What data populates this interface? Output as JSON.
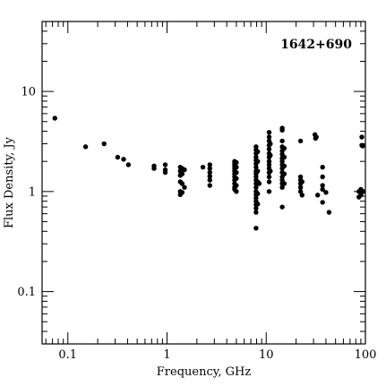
{
  "chart_data": {
    "type": "scatter",
    "title": "",
    "annotation": "1642+690",
    "xlabel": "Frequency, GHz",
    "ylabel": "Flux Density, Jy",
    "xscale": "log",
    "yscale": "log",
    "xlim": [
      0.055,
      100
    ],
    "ylim": [
      0.03,
      50
    ],
    "grid": false,
    "legend": "none",
    "marker_color": "#000000",
    "x_ticklabels": [
      {
        "value": 0.1,
        "label": "0.1"
      },
      {
        "value": 1,
        "label": "1"
      },
      {
        "value": 10,
        "label": "10"
      },
      {
        "value": 100,
        "label": "100"
      }
    ],
    "y_ticklabels": [
      {
        "value": 0.1,
        "label": "0.1"
      },
      {
        "value": 1,
        "label": "1"
      },
      {
        "value": 10,
        "label": "10"
      }
    ],
    "points": [
      [
        0.074,
        5.4
      ],
      [
        0.151,
        2.8
      ],
      [
        0.232,
        3.0
      ],
      [
        0.318,
        2.2
      ],
      [
        0.365,
        2.1
      ],
      [
        0.408,
        1.85
      ],
      [
        0.74,
        1.8
      ],
      [
        0.74,
        1.7
      ],
      [
        0.96,
        1.85
      ],
      [
        0.96,
        1.65
      ],
      [
        0.96,
        1.55
      ],
      [
        1.36,
        1.75
      ],
      [
        1.36,
        1.6
      ],
      [
        1.36,
        1.45
      ],
      [
        1.36,
        1.25
      ],
      [
        1.36,
        1.0
      ],
      [
        1.36,
        0.93
      ],
      [
        1.42,
        1.7
      ],
      [
        1.42,
        1.5
      ],
      [
        1.42,
        1.2
      ],
      [
        1.42,
        0.98
      ],
      [
        1.5,
        1.65
      ],
      [
        1.5,
        1.1
      ],
      [
        2.3,
        1.75
      ],
      [
        2.7,
        1.85
      ],
      [
        2.7,
        1.7
      ],
      [
        2.7,
        1.55
      ],
      [
        2.7,
        1.42
      ],
      [
        2.7,
        1.3
      ],
      [
        2.7,
        1.15
      ],
      [
        4.8,
        2.0
      ],
      [
        4.8,
        1.9
      ],
      [
        4.8,
        1.8
      ],
      [
        4.8,
        1.7
      ],
      [
        4.8,
        1.6
      ],
      [
        4.8,
        1.5
      ],
      [
        4.8,
        1.4
      ],
      [
        4.8,
        1.3
      ],
      [
        4.8,
        1.2
      ],
      [
        4.8,
        1.1
      ],
      [
        4.8,
        1.05
      ],
      [
        5.0,
        1.95
      ],
      [
        5.0,
        1.75
      ],
      [
        5.0,
        1.55
      ],
      [
        5.0,
        1.35
      ],
      [
        5.0,
        1.15
      ],
      [
        5.0,
        1.0
      ],
      [
        7.9,
        2.8
      ],
      [
        7.9,
        2.6
      ],
      [
        7.9,
        2.4
      ],
      [
        7.9,
        2.2
      ],
      [
        7.9,
        2.05
      ],
      [
        7.9,
        1.9
      ],
      [
        7.9,
        1.75
      ],
      [
        7.9,
        1.6
      ],
      [
        7.9,
        1.5
      ],
      [
        7.9,
        1.4
      ],
      [
        7.9,
        1.3
      ],
      [
        7.9,
        1.2
      ],
      [
        7.9,
        1.1
      ],
      [
        7.9,
        1.0
      ],
      [
        7.9,
        0.93
      ],
      [
        7.9,
        0.86
      ],
      [
        7.9,
        0.8
      ],
      [
        7.9,
        0.74
      ],
      [
        7.9,
        0.68
      ],
      [
        7.9,
        0.62
      ],
      [
        8.2,
        2.5
      ],
      [
        8.2,
        2.0
      ],
      [
        8.2,
        1.6
      ],
      [
        8.2,
        1.25
      ],
      [
        8.2,
        0.95
      ],
      [
        8.2,
        0.75
      ],
      [
        7.9,
        0.43
      ],
      [
        8.5,
        1.2
      ],
      [
        10.7,
        3.9
      ],
      [
        10.7,
        3.5
      ],
      [
        10.7,
        3.2
      ],
      [
        10.7,
        2.9
      ],
      [
        10.7,
        2.65
      ],
      [
        10.7,
        2.4
      ],
      [
        10.7,
        2.2
      ],
      [
        10.7,
        2.0
      ],
      [
        10.7,
        1.85
      ],
      [
        10.7,
        1.7
      ],
      [
        10.7,
        1.55
      ],
      [
        10.7,
        1.4
      ],
      [
        10.7,
        1.25
      ],
      [
        11.0,
        3.0
      ],
      [
        11.0,
        2.3
      ],
      [
        11.0,
        1.6
      ],
      [
        10.7,
        1.0
      ],
      [
        14.5,
        4.3
      ],
      [
        14.5,
        4.1
      ],
      [
        14.5,
        3.2
      ],
      [
        14.5,
        2.8
      ],
      [
        14.5,
        2.55
      ],
      [
        14.5,
        2.35
      ],
      [
        14.5,
        2.15
      ],
      [
        14.5,
        2.0
      ],
      [
        14.5,
        1.85
      ],
      [
        14.5,
        1.7
      ],
      [
        14.5,
        1.55
      ],
      [
        14.5,
        1.4
      ],
      [
        14.5,
        1.3
      ],
      [
        14.5,
        1.2
      ],
      [
        14.5,
        1.1
      ],
      [
        15.2,
        2.7
      ],
      [
        15.2,
        2.2
      ],
      [
        15.2,
        1.8
      ],
      [
        15.2,
        1.5
      ],
      [
        15.2,
        1.2
      ],
      [
        14.5,
        0.7
      ],
      [
        22.2,
        3.2
      ],
      [
        22.2,
        1.4
      ],
      [
        22.2,
        1.3
      ],
      [
        22.2,
        1.2
      ],
      [
        22.2,
        1.1
      ],
      [
        22.2,
        1.0
      ],
      [
        23.0,
        1.25
      ],
      [
        23.0,
        0.92
      ],
      [
        31.0,
        3.7
      ],
      [
        31.4,
        3.4
      ],
      [
        32.0,
        3.5
      ],
      [
        33.0,
        0.92
      ],
      [
        37.0,
        1.75
      ],
      [
        37.0,
        1.4
      ],
      [
        37.0,
        1.15
      ],
      [
        37.0,
        1.05
      ],
      [
        37.0,
        0.78
      ],
      [
        40.0,
        0.98
      ],
      [
        43.0,
        0.62
      ],
      [
        86.0,
        1.0
      ],
      [
        86.0,
        0.88
      ],
      [
        90.0,
        1.05
      ],
      [
        90.0,
        0.92
      ],
      [
        92.0,
        3.5
      ],
      [
        92.0,
        2.9
      ],
      [
        94.0,
        2.85
      ],
      [
        95.0,
        1.0
      ]
    ]
  }
}
